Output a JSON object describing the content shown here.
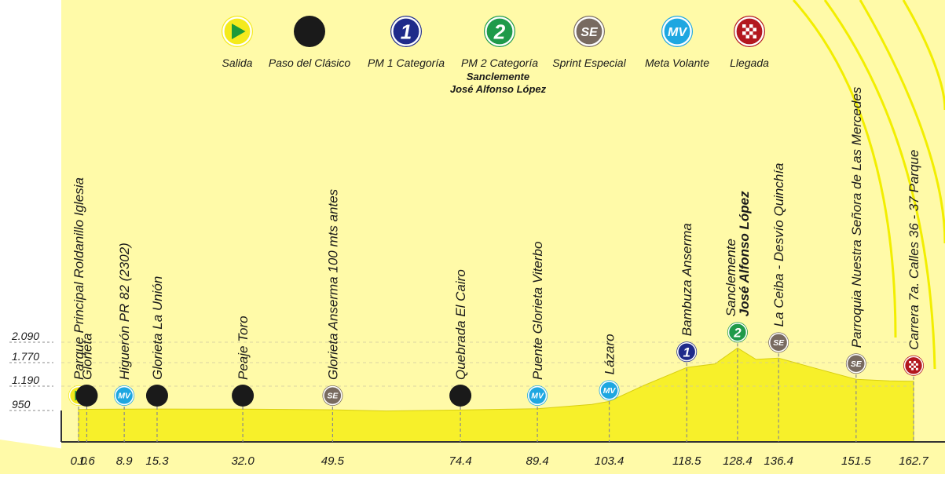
{
  "legend": [
    {
      "key": "salida",
      "label": "Salida",
      "icon": "start-play-icon"
    },
    {
      "key": "clasico",
      "label": "Paso del Clásico",
      "icon": "black-dot-icon"
    },
    {
      "key": "pm1",
      "label": "PM 1 Categoría",
      "icon": "pm1-icon",
      "icon_text": "1"
    },
    {
      "key": "pm2",
      "label": "PM 2 Categoría",
      "icon": "pm2-icon",
      "icon_text": "2",
      "sub": [
        "Sanclemente",
        "José Alfonso López"
      ]
    },
    {
      "key": "se",
      "label": "Sprint Especial",
      "icon": "sprint-especial-icon",
      "icon_text": "SE"
    },
    {
      "key": "mv",
      "label": "Meta Volante",
      "icon": "meta-volante-icon",
      "icon_text": "MV"
    },
    {
      "key": "llegada",
      "label": "Llegada",
      "icon": "finish-flag-icon"
    }
  ],
  "colors": {
    "background_yellow": "#fffaa8",
    "profile_fill": "#f7f02a",
    "arc_yellow": "#f2ee00",
    "pm1": "#1f2b8a",
    "pm2": "#1f9a4a",
    "se": "#786a60",
    "mv": "#1ea7e1",
    "llegada": "#b3171f",
    "salida": "#f4ea1d",
    "black": "#1a1a1a",
    "axis": "#333333",
    "guide": "#8a8a8a"
  },
  "chart_data": {
    "type": "area",
    "title": "",
    "xlabel": "",
    "ylabel": "",
    "xlim": [
      0,
      162.7
    ],
    "ylim": [
      950,
      2090
    ],
    "y_ticks": [
      {
        "value": 950,
        "label": "950"
      },
      {
        "value": 1190,
        "label": "1.190"
      },
      {
        "value": 1770,
        "label": "1.770"
      },
      {
        "value": 2090,
        "label": "2.090"
      }
    ],
    "x_ticks": [
      "0.0",
      "1.6",
      "8.9",
      "15.3",
      "32.0",
      "49.5",
      "74.4",
      "89.4",
      "103.4",
      "118.5",
      "128.4",
      "136.4",
      "151.5",
      "162.7"
    ],
    "profile": {
      "x": [
        0,
        1.6,
        8.9,
        15.3,
        32.0,
        49.5,
        60,
        74.4,
        89.4,
        100,
        103.4,
        110,
        118.5,
        124,
        128.4,
        132,
        136.4,
        143,
        151.5,
        158,
        162.7
      ],
      "y": [
        960,
        962,
        964,
        965,
        963,
        957,
        945,
        955,
        968,
        1010,
        1040,
        1200,
        1650,
        1740,
        2000,
        1820,
        1840,
        1650,
        1360,
        1320,
        1310
      ]
    },
    "points": [
      {
        "km": 0.0,
        "type": "salida",
        "names": [
          "Parque Principal Roldanillo Iglesia"
        ]
      },
      {
        "km": 1.6,
        "type": "clasico",
        "names": [
          "Glorieta"
        ]
      },
      {
        "km": 8.9,
        "type": "mv",
        "names": [
          "Higuerón PR 82 (2302)"
        ]
      },
      {
        "km": 15.3,
        "type": "clasico",
        "names": [
          "Glorieta La Unión"
        ]
      },
      {
        "km": 32.0,
        "type": "clasico",
        "names": [
          "Peaje Toro"
        ]
      },
      {
        "km": 49.5,
        "type": "se",
        "names": [
          "Glorieta Anserma  100 mts antes"
        ]
      },
      {
        "km": 74.4,
        "type": "clasico",
        "names": [
          "Quebrada El Cairo"
        ]
      },
      {
        "km": 89.4,
        "type": "mv",
        "names": [
          "Puente Glorieta Viterbo"
        ]
      },
      {
        "km": 103.4,
        "type": "mv",
        "names": [
          "Lázaro"
        ]
      },
      {
        "km": 118.5,
        "type": "pm1",
        "names": [
          "Bambuza Anserma"
        ]
      },
      {
        "km": 128.4,
        "type": "pm2",
        "names": [
          "Sanclemente",
          "José Alfonso López"
        ]
      },
      {
        "km": 136.4,
        "type": "se",
        "names": [
          "La Ceiba - Desvío Quinchía"
        ]
      },
      {
        "km": 151.5,
        "type": "se",
        "names": [
          "Parroquia Nuestra Señora de Las Mercedes"
        ]
      },
      {
        "km": 162.7,
        "type": "llegada",
        "names": [
          "Carrera 7a. Calles 36 - 37 Parque"
        ]
      }
    ]
  }
}
